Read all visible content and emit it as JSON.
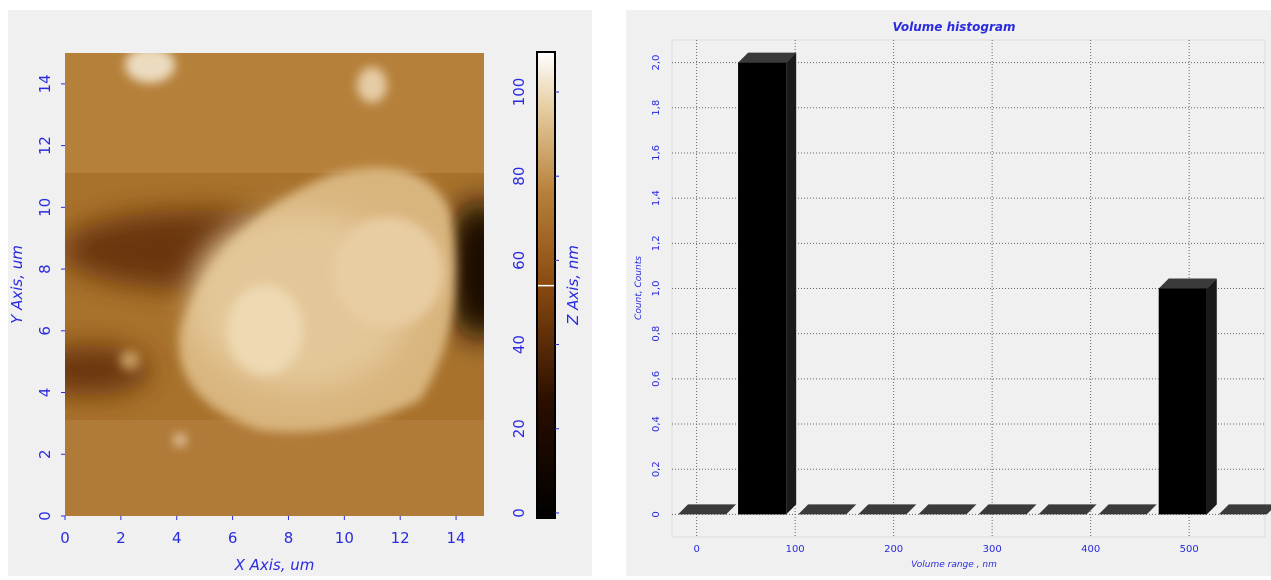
{
  "chart_data": [
    {
      "type": "image",
      "xlabel": "X Axis, um",
      "ylabel": "Y Axis, um",
      "xlim": [
        0,
        15
      ],
      "ylim": [
        0,
        15
      ],
      "xticks": [
        0,
        2,
        4,
        6,
        8,
        10,
        12,
        14
      ],
      "yticks": [
        0,
        2,
        4,
        6,
        8,
        10,
        12,
        14
      ],
      "colorbar": {
        "label": "Z Axis, nm",
        "lim": [
          -1.2,
          109.5
        ],
        "ticks": [
          0,
          20,
          40,
          60,
          80,
          100
        ],
        "marker": 54
      }
    },
    {
      "type": "histogram",
      "title": "Volume histogram",
      "xlabel": "Volume range , nm",
      "ylabel": "Count, Counts",
      "bins": [
        -25,
        36,
        97,
        158,
        219,
        280,
        341,
        402,
        463,
        524,
        585
      ],
      "values": [
        0,
        2,
        0,
        0,
        0,
        0,
        0,
        0,
        1,
        0
      ],
      "color": "#000000",
      "xlim": [
        -25,
        577
      ],
      "ylim": [
        -0.1,
        2.1
      ],
      "xticks": [
        0,
        100,
        200,
        300,
        400,
        500
      ],
      "yticks": [
        0,
        {
          "value": 0.2,
          "label": "0,2"
        },
        {
          "value": 0.4,
          "label": "0,4"
        },
        {
          "value": 0.6,
          "label": "0,6"
        },
        {
          "value": 0.8,
          "label": "0,8"
        },
        {
          "value": 1.0,
          "label": "1,0"
        },
        {
          "value": 1.2,
          "label": "1,2"
        },
        {
          "value": 1.4,
          "label": "1,4"
        },
        {
          "value": 1.6,
          "label": "1,6"
        },
        {
          "value": 1.8,
          "label": "1,8"
        },
        {
          "value": 2.0,
          "label": "2,0"
        }
      ],
      "grid": true
    }
  ]
}
